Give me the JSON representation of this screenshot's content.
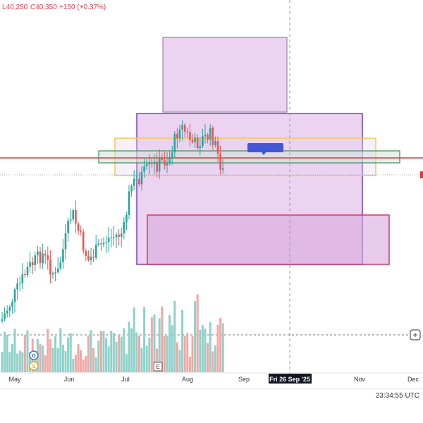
{
  "legend": {
    "low": "L40,250",
    "close": "C40,350",
    "change": "+150 (+0.37%)"
  },
  "time_axis": {
    "labels": [
      "May",
      "Jun",
      "Jul",
      "Aug",
      "Sep",
      "Nov",
      "Dec"
    ],
    "crosshair_label": "Fri 26 Sep '25"
  },
  "clock": "23:34:55 UTC",
  "markers": {
    "dividend": "D",
    "split": "S",
    "earnings": "E"
  },
  "price_tag": "",
  "add_button": "+",
  "colors": {
    "up": "#26a69a",
    "down": "#ef5350",
    "volume_up": "#8fd1c9",
    "volume_down": "#f4a6a4",
    "zone_fill": "#e6c4ee",
    "zone_border": "#7b3fb5",
    "yellow_border": "#f2c94c",
    "green_band_border": "#3c8c5c",
    "red_line": "#e53935",
    "pink_border": "#d63864",
    "label_blue": "#4257d6"
  }
}
